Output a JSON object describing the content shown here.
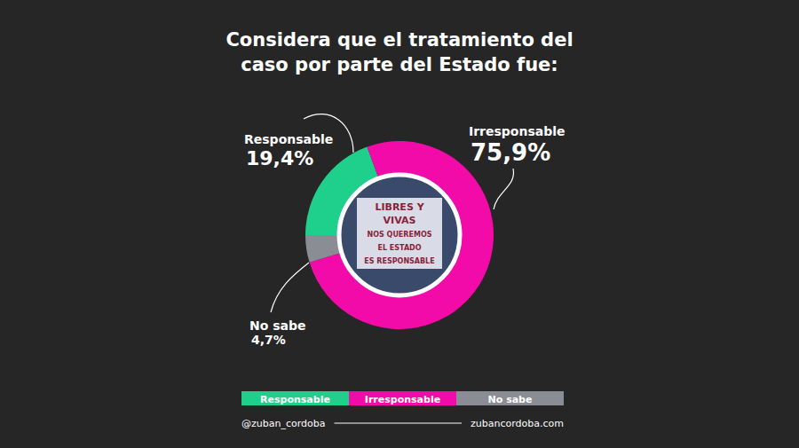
{
  "chart_data": {
    "type": "donut",
    "title": "Considera que el tratamiento del caso por parte del Estado fue:",
    "categories": [
      "Responsable",
      "Irresponsable",
      "No sabe"
    ],
    "values": [
      19.4,
      75.9,
      4.7
    ],
    "value_labels": [
      "19,4%",
      "75,9%",
      "4,7%"
    ],
    "colors": [
      "#1fd08c",
      "#f20ba8",
      "#8b8d95"
    ],
    "data_labels": true,
    "legend": "bottom",
    "annotations": [
      "LIBRES Y",
      "VIVAS",
      "NOS QUEREMOS",
      "EL ESTADO",
      "ES RESPONSABLE"
    ],
    "footer": [
      "@zuban_cordoba",
      "zubancordoba.com"
    ]
  }
}
